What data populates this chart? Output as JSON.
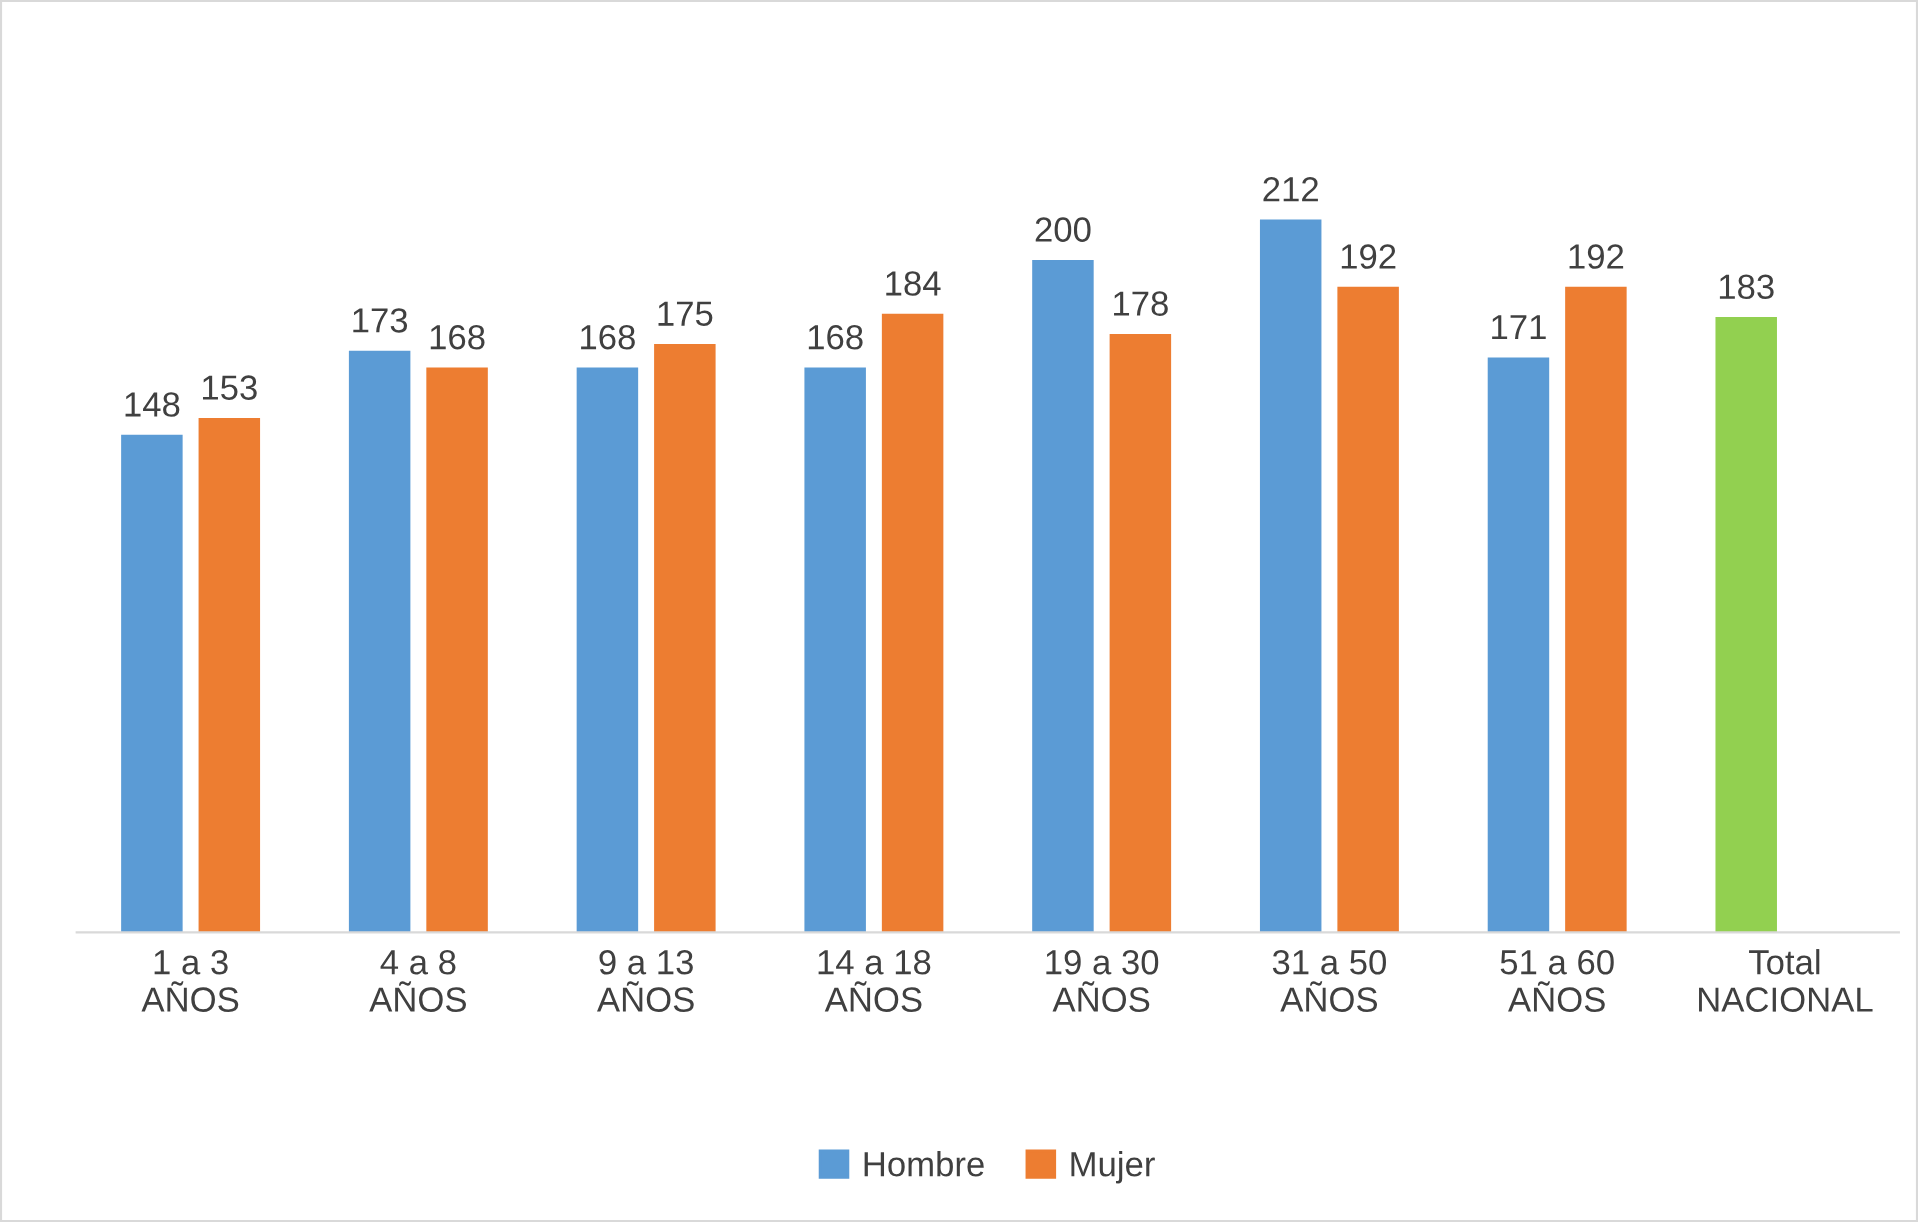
{
  "chart_data": {
    "type": "bar",
    "categories": [
      "1 a 3\nAÑOS",
      "4 a 8\nAÑOS",
      "9 a 13\nAÑOS",
      "14 a 18\nAÑOS",
      "19 a 30\nAÑOS",
      "31 a 50\nAÑOS",
      "51 a 60\nAÑOS",
      "Total\nNACIONAL"
    ],
    "series": [
      {
        "name": "Hombre",
        "color": "#5b9bd5",
        "colors": [
          "#5b9bd5",
          "#5b9bd5",
          "#5b9bd5",
          "#5b9bd5",
          "#5b9bd5",
          "#5b9bd5",
          "#5b9bd5",
          "#92d050"
        ],
        "values": [
          148,
          173,
          168,
          168,
          200,
          212,
          171,
          183
        ]
      },
      {
        "name": "Mujer",
        "color": "#ed7d31",
        "values": [
          153,
          168,
          175,
          184,
          178,
          192,
          192,
          null
        ]
      }
    ],
    "data_labels": true,
    "legend": "bottom"
  }
}
